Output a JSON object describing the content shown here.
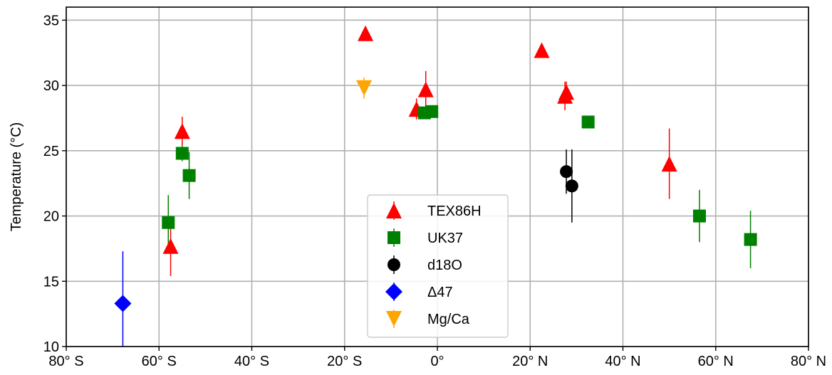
{
  "chart_data": {
    "type": "scatter",
    "title": "",
    "xlabel": "",
    "ylabel": "Temperature (°C)",
    "xlim": [
      -80,
      80
    ],
    "ylim": [
      10,
      36
    ],
    "grid": true,
    "legend_position": "lower-center",
    "x_ticks": [
      {
        "value": -80,
        "label": "80° S"
      },
      {
        "value": -60,
        "label": "60° S"
      },
      {
        "value": -40,
        "label": "40° S"
      },
      {
        "value": -20,
        "label": "20° S"
      },
      {
        "value": 0,
        "label": "0°"
      },
      {
        "value": 20,
        "label": "20° N"
      },
      {
        "value": 40,
        "label": "40° N"
      },
      {
        "value": 60,
        "label": "60° N"
      },
      {
        "value": 80,
        "label": "80° N"
      }
    ],
    "y_ticks": [
      {
        "value": 10,
        "label": "10"
      },
      {
        "value": 15,
        "label": "15"
      },
      {
        "value": 20,
        "label": "20"
      },
      {
        "value": 25,
        "label": "25"
      },
      {
        "value": 30,
        "label": "30"
      },
      {
        "value": 35,
        "label": "35"
      }
    ],
    "series": [
      {
        "name": "TEX86H",
        "color": "#ff0000",
        "marker": "triangle-up",
        "points": [
          {
            "x": -57.5,
            "y": 17.7,
            "err": 2.3
          },
          {
            "x": -55.0,
            "y": 26.5,
            "err": 1.1
          },
          {
            "x": -15.5,
            "y": 34.0,
            "err": 0.3
          },
          {
            "x": -4.5,
            "y": 28.2,
            "err": 0.8
          },
          {
            "x": -2.5,
            "y": 29.7,
            "err": 1.4
          },
          {
            "x": 22.5,
            "y": 32.7,
            "err": 0.4
          },
          {
            "x": 27.5,
            "y": 29.2,
            "err": 1.1
          },
          {
            "x": 27.8,
            "y": 29.5,
            "err": 0.8
          },
          {
            "x": 50.0,
            "y": 24.0,
            "err": 2.7
          }
        ]
      },
      {
        "name": "UK37",
        "color": "#008000",
        "marker": "square",
        "points": [
          {
            "x": -58.0,
            "y": 19.5,
            "err": 2.1
          },
          {
            "x": -55.0,
            "y": 24.8,
            "err": 0.6
          },
          {
            "x": -53.5,
            "y": 23.1,
            "err": 1.8
          },
          {
            "x": -2.8,
            "y": 27.9,
            "err": 0.3
          },
          {
            "x": -1.2,
            "y": 28.0,
            "err": 0.3
          },
          {
            "x": 32.5,
            "y": 27.2,
            "err": 0.2
          },
          {
            "x": 56.5,
            "y": 20.0,
            "err": 2.0
          },
          {
            "x": 67.5,
            "y": 18.2,
            "err": 2.2
          }
        ]
      },
      {
        "name": "d18O",
        "color": "#000000",
        "marker": "circle",
        "points": [
          {
            "x": 27.8,
            "y": 23.4,
            "err": 1.7
          },
          {
            "x": 29.0,
            "y": 22.3,
            "err": 2.8
          }
        ]
      },
      {
        "name": "Δ47",
        "color": "#0000ff",
        "marker": "diamond",
        "points": [
          {
            "x": -67.8,
            "y": 13.3,
            "err": 4.0
          }
        ]
      },
      {
        "name": "Mg/Ca",
        "color": "#ffa500",
        "marker": "triangle-down",
        "points": [
          {
            "x": -15.8,
            "y": 29.8,
            "err": 0.8
          }
        ]
      }
    ]
  }
}
